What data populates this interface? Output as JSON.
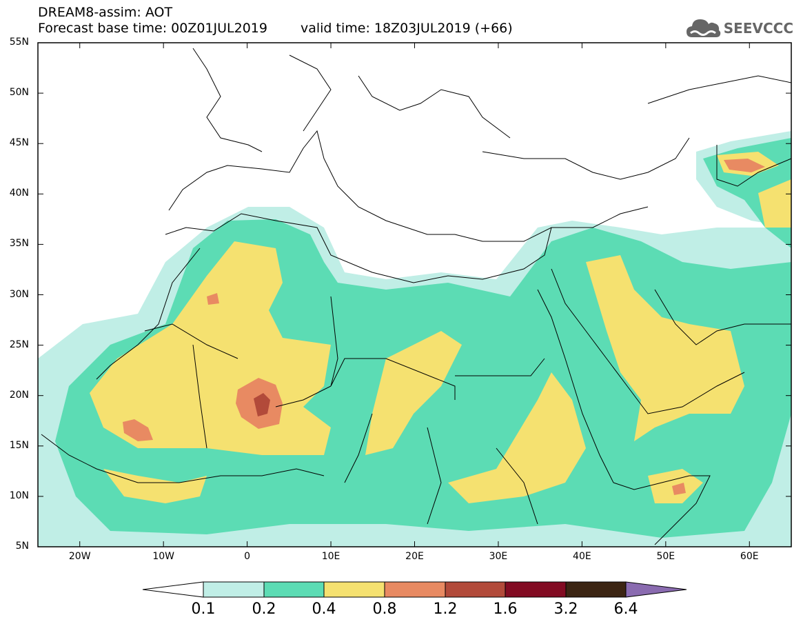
{
  "header": {
    "line1": "DREAM8-assim: AOT",
    "base": "Forecast base time: 00Z01JUL2019",
    "valid": "valid time: 18Z03JUL2019 (+66)"
  },
  "logo": {
    "text": "SEEVCCC",
    "icon": "cloud-icon",
    "color": "#666666"
  },
  "map": {
    "lat_range": [
      5,
      55
    ],
    "lon_range": [
      -25,
      65
    ],
    "lat_ticks": [
      "55N",
      "50N",
      "45N",
      "40N",
      "35N",
      "30N",
      "25N",
      "20N",
      "15N",
      "10N",
      "5N"
    ],
    "lon_ticks": [
      "20W",
      "10W",
      "0",
      "10E",
      "20E",
      "30E",
      "40E",
      "50E",
      "60E"
    ],
    "variable": "AOT"
  },
  "colorbar": {
    "labels": [
      "0.1",
      "0.2",
      "0.4",
      "0.8",
      "1.2",
      "1.6",
      "3.2",
      "6.4"
    ],
    "colors": [
      "#ffffff",
      "#c0eee6",
      "#5cdcb4",
      "#f5e170",
      "#e88a62",
      "#b24a3a",
      "#820b22",
      "#3c2513",
      "#8a6bb0"
    ]
  }
}
